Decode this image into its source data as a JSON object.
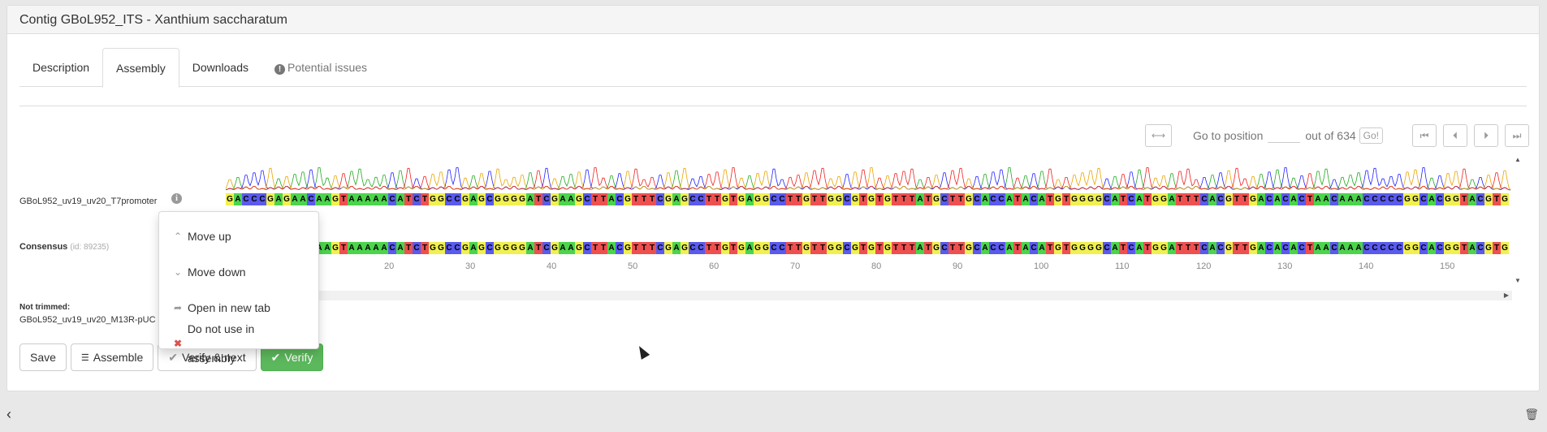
{
  "title": "Contig GBoL952_ITS - Xanthium saccharatum",
  "tabs": [
    {
      "label": "Description"
    },
    {
      "label": "Assembly"
    },
    {
      "label": "Downloads"
    },
    {
      "label": "Potential issues"
    }
  ],
  "nav": {
    "goto_label": "Go to position",
    "goto_value": "",
    "outof": "out of 634",
    "go_label": "Go!"
  },
  "reads": {
    "read1_name": "GBoL952_uv19_uv20_T7promoter",
    "consensus_label": "Consensus",
    "consensus_id": "(id: 89235)",
    "not_trimmed_label": "Not trimmed:",
    "not_trimmed_name": "GBoL952_uv19_uv20_M13R-pUC"
  },
  "sequence": {
    "read1": "GACCCGAGAACAAGTAAAAACATCTGGCCGAGCGGGGATCGAAGCTTACGTTTCGAGCCTTGTGAGGCCTTGTTGGCGTGTGTTTATGCTTGCACCATACATGTGGGGCATCATGGATTTCACGTTGACACACTAACAAACCCCCGGCACGGTACGTG",
    "consensus": "GACCCGAGAACAAGTAAAAACATCTGGCCGAGCGGGGATCGAAGCTTACGTTTCGAGCCTTGTGAGGCCTTGTTGGCGTGTGTTTATGCTTGCACCATACATGTGGGGCATCATGGATTTCACGTTGACACACTAACAAACCCCCGGCACGGTACGTG",
    "ticks": [
      "20",
      "30",
      "40",
      "50",
      "60",
      "70",
      "80",
      "90",
      "100",
      "110",
      "120",
      "130",
      "140",
      "150"
    ],
    "base_colors": {
      "A": "#4cd44c",
      "C": "#5a5aee",
      "G": "#f0f050",
      "T": "#ee5050"
    }
  },
  "context_menu": {
    "items": [
      {
        "label": "Move up"
      },
      {
        "label": "Move down"
      },
      {
        "label": "Open in new tab"
      },
      {
        "label": "Do not use in assembly"
      }
    ]
  },
  "buttons": {
    "save": "Save",
    "assemble": "Assemble",
    "verify_next": "Verify & next",
    "verify": "Verify"
  }
}
